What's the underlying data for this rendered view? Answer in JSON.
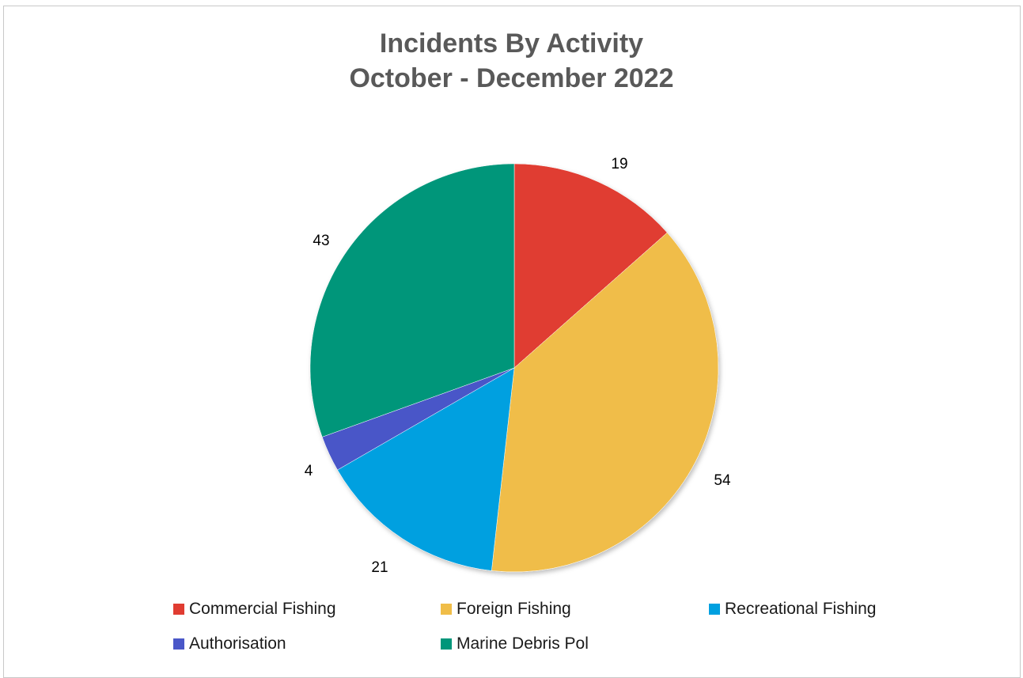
{
  "chart_data": {
    "type": "pie",
    "title": [
      "Incidents By Activity",
      "October - December 2022"
    ],
    "categories": [
      "Commercial Fishing",
      "Foreign Fishing",
      "Recreational Fishing",
      "Authorisation",
      "Marine Debris Pol"
    ],
    "values": [
      19,
      54,
      21,
      4,
      43
    ],
    "colors": [
      "#e03c31",
      "#f0bd48",
      "#00a0e0",
      "#4a57c8",
      "#00967a"
    ],
    "data_labels": [
      "19",
      "54",
      "21",
      "4",
      "43"
    ],
    "legend_position": "bottom"
  }
}
